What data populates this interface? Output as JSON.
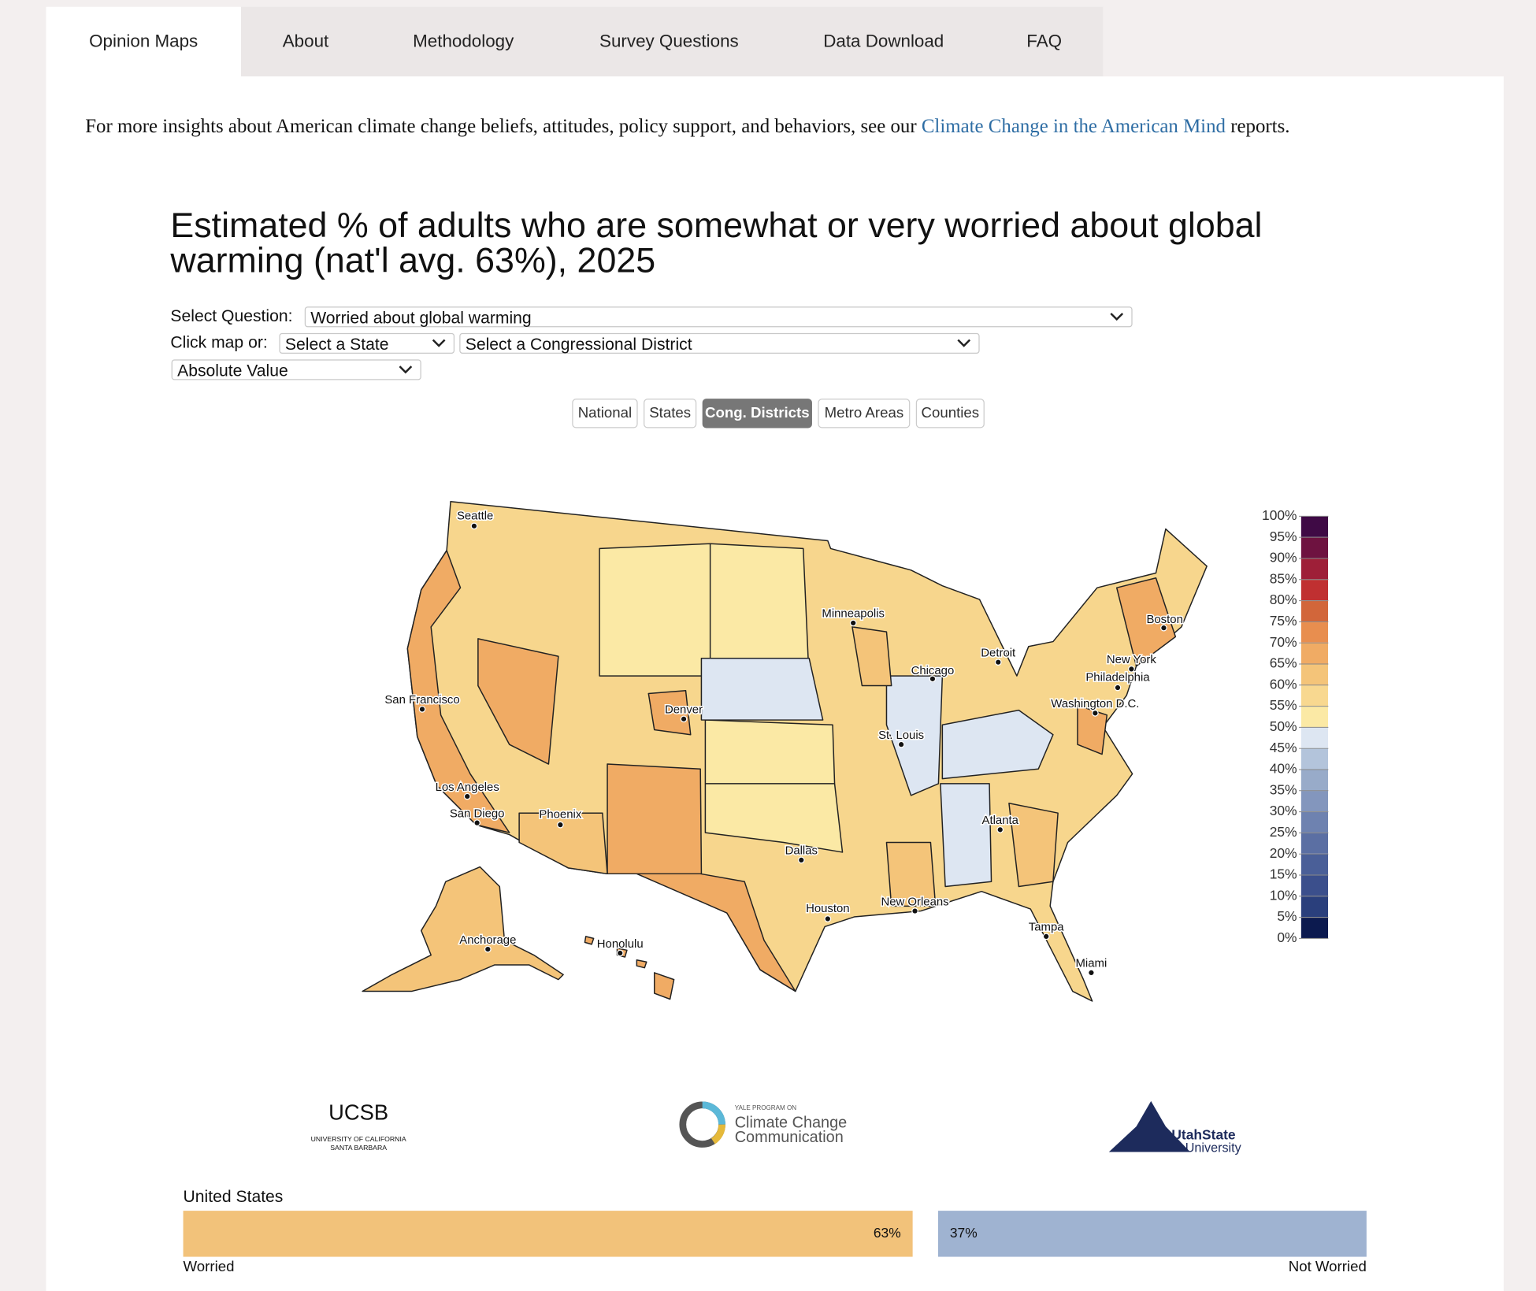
{
  "tabs": [
    "Opinion Maps",
    "About",
    "Methodology",
    "Survey Questions",
    "Data Download",
    "FAQ"
  ],
  "intro": {
    "before": "For more insights about American climate change beliefs, attitudes, policy support, and behaviors, see our",
    "link": "Climate Change in the American Mind",
    "after": "reports."
  },
  "title": "Estimated % of adults who are somewhat or very worried about global warming (nat'l avg. 63%), 2025",
  "controls": {
    "question_label": "Select Question:",
    "question": "Worried about global warming",
    "click_label": "Click map or:",
    "state": "Select a State",
    "district": "Select a Congressional District",
    "mode": "Absolute Value"
  },
  "geo_buttons": [
    "National",
    "States",
    "Cong. Districts",
    "Metro Areas",
    "Counties"
  ],
  "active_geo_button": 2,
  "map": {
    "cities": [
      "Seattle",
      "Minneapolis",
      "Detroit",
      "Boston",
      "Chicago",
      "New York",
      "Philadelphia",
      "San Francisco",
      "Denver",
      "Washington D.C.",
      "St. Louis",
      "Los Angeles",
      "San Diego",
      "Phoenix",
      "Atlanta",
      "Dallas",
      "New Orleans",
      "Houston",
      "Tampa",
      "Anchorage",
      "Honolulu",
      "Miami"
    ]
  },
  "legend": {
    "labels": [
      "100%",
      "95%",
      "90%",
      "85%",
      "80%",
      "75%",
      "70%",
      "65%",
      "60%",
      "55%",
      "50%",
      "45%",
      "40%",
      "35%",
      "30%",
      "25%",
      "20%",
      "15%",
      "10%",
      "5%",
      "0%"
    ],
    "colors": [
      "#3f0a45",
      "#6e1240",
      "#9e1f38",
      "#c03031",
      "#d2663a",
      "#e88e4f",
      "#f0ab64",
      "#f4c479",
      "#f8d890",
      "#fbe9a5",
      "#dde6f2",
      "#b3c4db",
      "#98abc9",
      "#8396bd",
      "#6e82b0",
      "#5b6fa3",
      "#4a5f98",
      "#3b4f8c",
      "#2a3f7c",
      "#0c1a4f"
    ]
  },
  "logos": {
    "ucsb": {
      "name": "UCSB",
      "line1": "UNIVERSITY OF CALIFORNIA",
      "line2": "SANTA BARBARA"
    },
    "yale": {
      "small": "YALE PROGRAM ON",
      "line1": "Climate Change",
      "line2": "Communication"
    },
    "usu": {
      "line1": "UtahState",
      "line2": "University"
    }
  },
  "summary": {
    "region": "United States",
    "segments": [
      {
        "name": "Worried",
        "value": 63,
        "label": "63%",
        "color": "#f2c27a"
      },
      {
        "name": "Not Worried",
        "value": 37,
        "label": "37%",
        "color": "#9fb3d1"
      }
    ]
  }
}
